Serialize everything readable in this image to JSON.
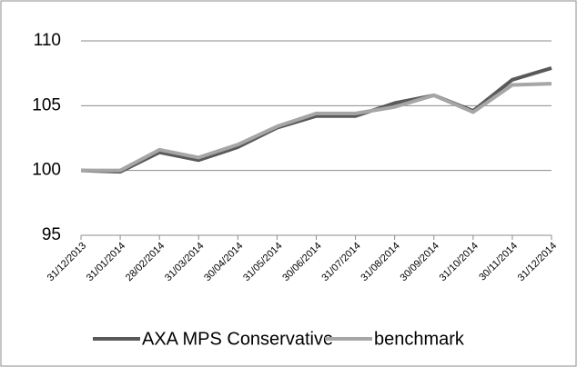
{
  "chart_data": {
    "type": "line",
    "categories": [
      "31/12/2013",
      "31/01/2014",
      "28/02/2014",
      "31/03/2014",
      "30/04/2014",
      "31/05/2014",
      "30/06/2014",
      "31/07/2014",
      "31/08/2014",
      "30/09/2014",
      "31/10/2014",
      "30/11/2014",
      "31/12/2014"
    ],
    "series": [
      {
        "name": "AXA MPS Conservative",
        "color": "#595959",
        "values": [
          100,
          99.9,
          101.4,
          100.8,
          101.8,
          103.3,
          104.2,
          104.2,
          105.2,
          105.8,
          104.6,
          107.0,
          107.9
        ]
      },
      {
        "name": "benchmark",
        "color": "#a6a6a6",
        "values": [
          100,
          100.0,
          101.6,
          101.0,
          102.0,
          103.4,
          104.4,
          104.4,
          104.9,
          105.8,
          104.5,
          106.6,
          106.7
        ]
      }
    ],
    "ylim": [
      95,
      110
    ],
    "yticks": [
      95,
      100,
      105,
      110
    ],
    "grid": true,
    "legend": "bottom"
  }
}
